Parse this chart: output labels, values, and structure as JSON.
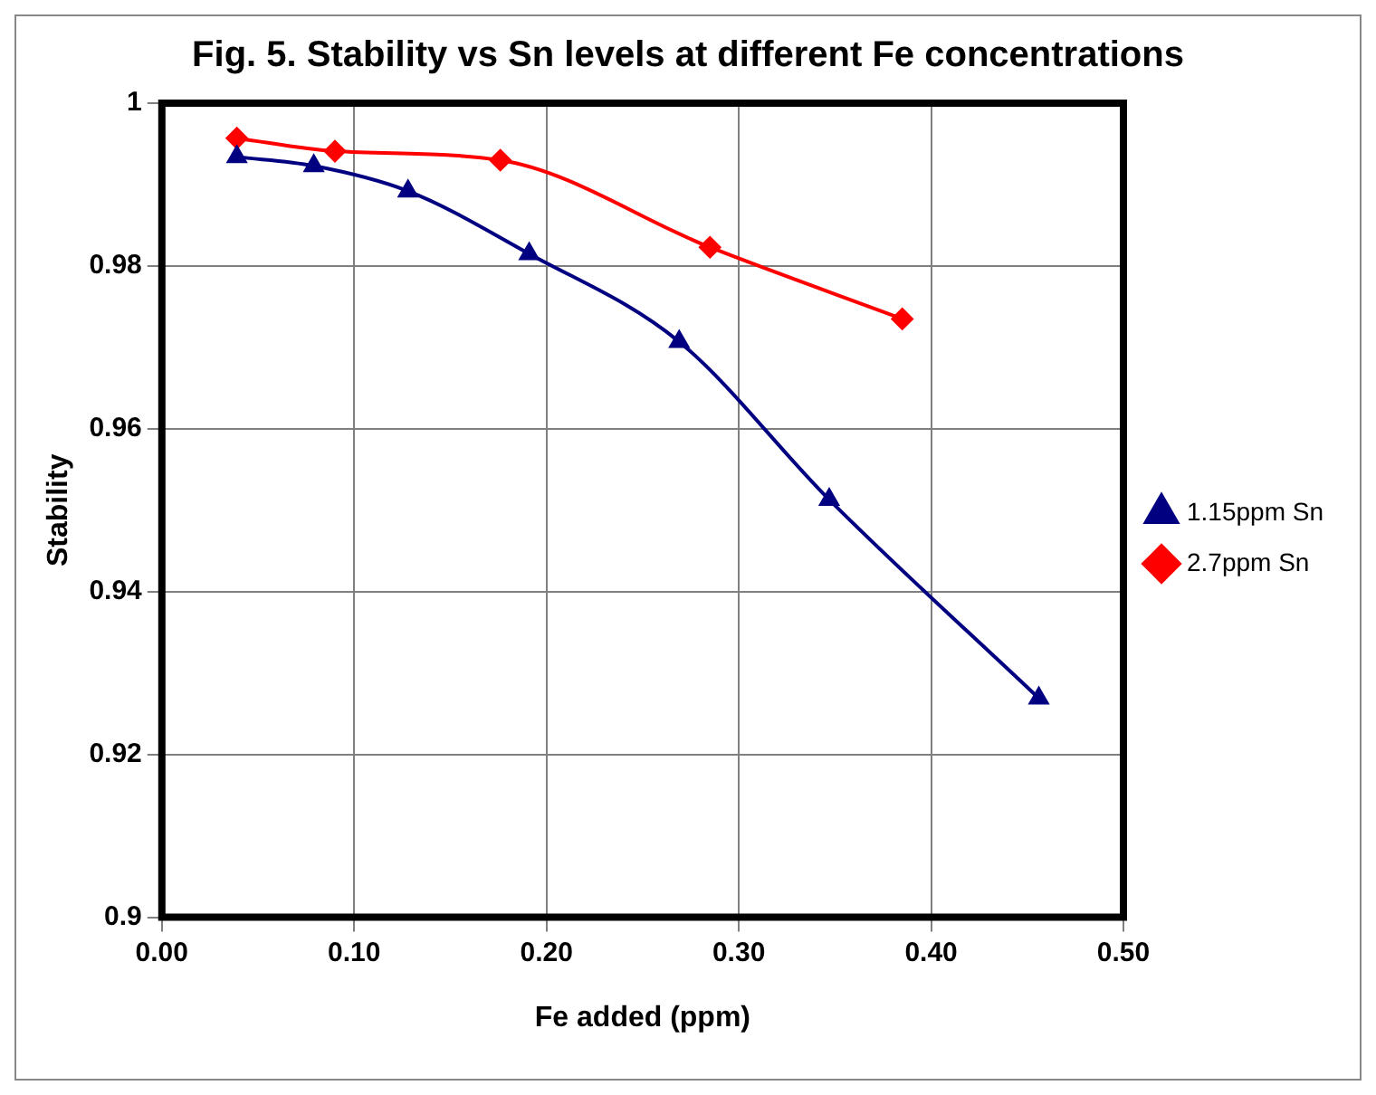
{
  "chart_data": {
    "type": "line",
    "title": "Fig. 5. Stability vs Sn levels at different Fe concentrations",
    "xlabel": "Fe added (ppm)",
    "ylabel": "Stability",
    "series": [
      {
        "name": "1.15ppm Sn",
        "color": "#000080",
        "marker": "triangle",
        "x": [
          0.039,
          0.079,
          0.128,
          0.191,
          0.269,
          0.347,
          0.456
        ],
        "values": [
          0.9934,
          0.9923,
          0.9892,
          0.9815,
          0.9707,
          0.9513,
          0.9269
        ]
      },
      {
        "name": "2.7ppm Sn",
        "color": "#ff0000",
        "marker": "diamond",
        "x": [
          0.039,
          0.09,
          0.176,
          0.285,
          0.385
        ],
        "values": [
          0.9957,
          0.9941,
          0.993,
          0.9823,
          0.9735
        ]
      }
    ],
    "xlim": [
      0,
      0.5
    ],
    "xticks": [
      {
        "value": 0,
        "label": "0.00"
      },
      {
        "value": 0.1,
        "label": "0.10"
      },
      {
        "value": 0.2,
        "label": "0.20"
      },
      {
        "value": 0.3,
        "label": "0.30"
      },
      {
        "value": 0.4,
        "label": "0.40"
      },
      {
        "value": 0.5,
        "label": "0.50"
      }
    ],
    "ylim": [
      0.9,
      1
    ],
    "yticks": [
      0.9,
      0.92,
      0.94,
      0.96,
      0.98,
      1
    ],
    "grid": true,
    "legend": "right",
    "line_style": "solid"
  }
}
